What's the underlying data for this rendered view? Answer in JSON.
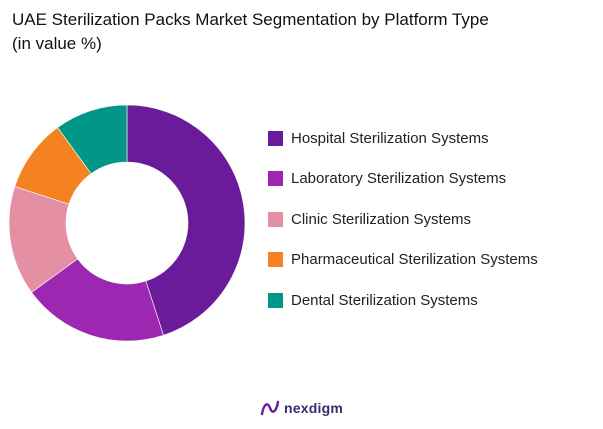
{
  "header": {
    "title_line1": "UAE Sterilization Packs Market Segmentation by Platform Type",
    "title_line2": "(in value %)"
  },
  "chart_data": {
    "type": "pie",
    "donut": true,
    "categories": [
      "Hospital Sterilization Systems",
      "Laboratory Sterilization Systems",
      "Clinic Sterilization Systems",
      "Pharmaceutical Sterilization Systems",
      "Dental Sterilization Systems"
    ],
    "values": [
      45,
      20,
      15,
      10,
      10
    ],
    "colors": [
      "#6a1b9a",
      "#9c27b0",
      "#e58fa5",
      "#f58220",
      "#009688"
    ],
    "legend": "right",
    "start_angle_deg": 0,
    "direction": "clockwise"
  },
  "footer": {
    "brand": "nexdigm",
    "brand_icon": "nexdigm-logo-icon"
  }
}
